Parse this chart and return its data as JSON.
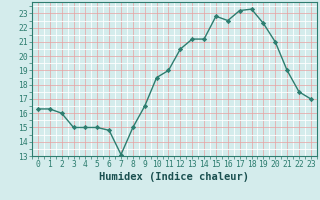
{
  "x": [
    0,
    1,
    2,
    3,
    4,
    5,
    6,
    7,
    8,
    9,
    10,
    11,
    12,
    13,
    14,
    15,
    16,
    17,
    18,
    19,
    20,
    21,
    22,
    23
  ],
  "y": [
    16.3,
    16.3,
    16.0,
    15.0,
    15.0,
    15.0,
    14.8,
    13.1,
    15.0,
    16.5,
    18.5,
    19.0,
    20.5,
    21.2,
    21.2,
    22.8,
    22.5,
    23.2,
    23.3,
    22.3,
    21.0,
    19.0,
    17.5,
    17.0
  ],
  "line_color": "#2d7d6f",
  "marker": "D",
  "marker_size": 2.2,
  "bg_color": "#d4ecec",
  "grid_white_color": "#ffffff",
  "grid_pink_color": "#e8a0a0",
  "xlabel": "Humidex (Indice chaleur)",
  "xlim": [
    -0.5,
    23.5
  ],
  "ylim": [
    13,
    23.8
  ],
  "yticks": [
    13,
    14,
    15,
    16,
    17,
    18,
    19,
    20,
    21,
    22,
    23
  ],
  "xticks": [
    0,
    1,
    2,
    3,
    4,
    5,
    6,
    7,
    8,
    9,
    10,
    11,
    12,
    13,
    14,
    15,
    16,
    17,
    18,
    19,
    20,
    21,
    22,
    23
  ],
  "tick_fontsize": 5.8,
  "xlabel_fontsize": 7.5,
  "linewidth": 1.0
}
